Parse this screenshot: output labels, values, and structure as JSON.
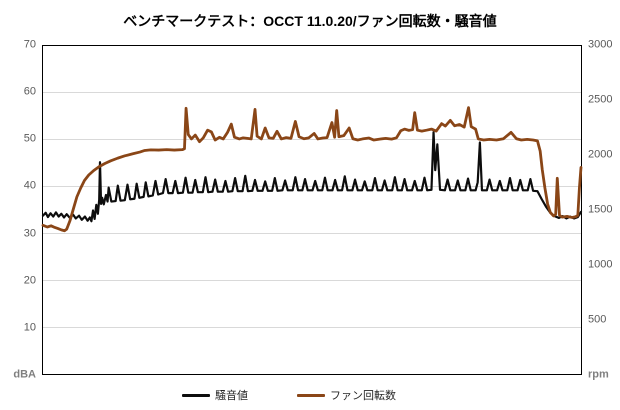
{
  "title": "ベンチマークテスト：OCCT 11.0.20/ファン回転数・騒音値",
  "colors": {
    "noise": "#0d0d0d",
    "fan": "#8a4617",
    "grid": "#d9d9d9",
    "plot_border": "#000000",
    "tick_label": "#595959",
    "unit_label": "#7f7f7f"
  },
  "left_axis": {
    "unit": "dBA",
    "max": 70,
    "min": 0,
    "ticks": [
      70,
      60,
      50,
      40,
      30,
      20,
      10
    ]
  },
  "right_axis": {
    "unit": "rpm",
    "max": 3000,
    "min": 0,
    "ticks": [
      3000,
      2500,
      2000,
      1500,
      1000,
      500
    ]
  },
  "legend": [
    {
      "label": "騒音値"
    },
    {
      "label": "ファン回転数"
    }
  ],
  "chart_data": {
    "type": "line",
    "title": "ベンチマークテスト：OCCT 11.0.20/ファン回転数・騒音値",
    "x_axis": "time (% of benchmark run, unlabeled in chart)",
    "ylim_left": [
      0,
      70
    ],
    "ylim_right": [
      0,
      3000
    ],
    "grid": "horizontal, every 10 dBA",
    "legend_position": "bottom",
    "series": [
      {
        "name": "騒音値",
        "key": "noise-line",
        "axis": "left",
        "unit": "dBA",
        "color": "#0d0d0d",
        "width": 2.2,
        "points": [
          [
            0,
            33.8
          ],
          [
            0.5,
            34.4
          ],
          [
            0.9,
            33.5
          ],
          [
            1.4,
            34.3
          ],
          [
            1.9,
            33.6
          ],
          [
            2.4,
            34.5
          ],
          [
            2.9,
            33.6
          ],
          [
            3.4,
            34.2
          ],
          [
            3.9,
            33.4
          ],
          [
            4.4,
            34.1
          ],
          [
            5,
            33.3
          ],
          [
            5.6,
            34
          ],
          [
            6.1,
            33.2
          ],
          [
            6.7,
            33.8
          ],
          [
            7.2,
            32.9
          ],
          [
            7.8,
            33.6
          ],
          [
            8.3,
            32.7
          ],
          [
            8.7,
            33.4
          ],
          [
            9,
            32.6
          ],
          [
            9.3,
            34.9
          ],
          [
            9.6,
            33.1
          ],
          [
            9.9,
            36.1
          ],
          [
            10.2,
            34.2
          ],
          [
            10.45,
            37.2
          ],
          [
            10.6,
            45.2
          ],
          [
            10.8,
            36.3
          ],
          [
            11,
            37.6
          ],
          [
            11.3,
            36.2
          ],
          [
            11.7,
            38.2
          ],
          [
            12,
            36.8
          ],
          [
            12.2,
            39.8
          ],
          [
            12.7,
            36.8
          ],
          [
            13.5,
            36.9
          ],
          [
            13.9,
            40.2
          ],
          [
            14.4,
            37
          ],
          [
            15.2,
            37.1
          ],
          [
            15.7,
            40.4
          ],
          [
            16.2,
            37.3
          ],
          [
            17,
            37.4
          ],
          [
            17.4,
            40.6
          ],
          [
            17.9,
            37.6
          ],
          [
            18.7,
            37.8
          ],
          [
            19.1,
            40.9
          ],
          [
            19.6,
            37.9
          ],
          [
            20.4,
            38.1
          ],
          [
            20.9,
            41.2
          ],
          [
            21.4,
            38.3
          ],
          [
            22.3,
            38.6
          ],
          [
            22.8,
            41.6
          ],
          [
            23.3,
            38.6
          ],
          [
            24.1,
            38.6
          ],
          [
            24.6,
            41.2
          ],
          [
            25.1,
            38.6
          ],
          [
            26,
            38.7
          ],
          [
            26.5,
            41.9
          ],
          [
            27,
            38.7
          ],
          [
            27.8,
            38.7
          ],
          [
            28.3,
            41.4
          ],
          [
            28.8,
            38.8
          ],
          [
            29.7,
            38.8
          ],
          [
            30.2,
            42
          ],
          [
            30.7,
            38.8
          ],
          [
            31.5,
            38.9
          ],
          [
            32,
            41.5
          ],
          [
            32.5,
            38.9
          ],
          [
            33.4,
            38.9
          ],
          [
            33.9,
            41.2
          ],
          [
            34.4,
            38.9
          ],
          [
            35.2,
            39
          ],
          [
            35.7,
            41.8
          ],
          [
            36.2,
            39
          ],
          [
            37.1,
            39
          ],
          [
            37.6,
            42.3
          ],
          [
            38.1,
            39
          ],
          [
            38.9,
            39.1
          ],
          [
            39.4,
            41.4
          ],
          [
            39.9,
            39.1
          ],
          [
            40.8,
            39.1
          ],
          [
            41.3,
            41.1
          ],
          [
            41.8,
            39.1
          ],
          [
            42.6,
            39.1
          ],
          [
            43.1,
            41.8
          ],
          [
            43.6,
            39.1
          ],
          [
            44.5,
            39.2
          ],
          [
            45,
            41.3
          ],
          [
            45.5,
            39.2
          ],
          [
            46.4,
            39.2
          ],
          [
            46.9,
            42
          ],
          [
            47.4,
            39.2
          ],
          [
            48.2,
            39.2
          ],
          [
            48.7,
            41.6
          ],
          [
            49.2,
            39.2
          ],
          [
            50.1,
            39.2
          ],
          [
            50.6,
            41.2
          ],
          [
            51.1,
            39.2
          ],
          [
            51.9,
            39.2
          ],
          [
            52.4,
            41.9
          ],
          [
            52.9,
            39.2
          ],
          [
            53.8,
            39.2
          ],
          [
            54.3,
            41.4
          ],
          [
            54.8,
            39.2
          ],
          [
            55.6,
            39.2
          ],
          [
            56.1,
            42.2
          ],
          [
            56.6,
            39.2
          ],
          [
            57.5,
            39.2
          ],
          [
            58,
            41.5
          ],
          [
            58.5,
            39.2
          ],
          [
            59.3,
            39.2
          ],
          [
            59.8,
            41.1
          ],
          [
            60.3,
            39.2
          ],
          [
            61.2,
            39.2
          ],
          [
            61.7,
            41.8
          ],
          [
            62.2,
            39.2
          ],
          [
            63,
            39.2
          ],
          [
            63.5,
            41.3
          ],
          [
            64,
            39.2
          ],
          [
            64.9,
            39.2
          ],
          [
            65.4,
            42
          ],
          [
            65.9,
            39.2
          ],
          [
            66.7,
            39.2
          ],
          [
            67.2,
            41.6
          ],
          [
            67.7,
            39.2
          ],
          [
            68.6,
            39.2
          ],
          [
            69.1,
            41.2
          ],
          [
            69.6,
            39.2
          ],
          [
            70.4,
            39.2
          ],
          [
            70.9,
            41.9
          ],
          [
            71.4,
            39.2
          ],
          [
            72.2,
            39.3
          ],
          [
            72.6,
            51.6
          ],
          [
            72.9,
            43.5
          ],
          [
            73.3,
            49
          ],
          [
            73.8,
            39.3
          ],
          [
            74.7,
            39.2
          ],
          [
            75.2,
            41.5
          ],
          [
            75.7,
            39.2
          ],
          [
            76.6,
            39.2
          ],
          [
            77.1,
            41.3
          ],
          [
            77.6,
            39.2
          ],
          [
            78.5,
            39.2
          ],
          [
            79,
            41.7
          ],
          [
            79.5,
            39.2
          ],
          [
            80.4,
            39.2
          ],
          [
            80.8,
            40.9
          ],
          [
            81.2,
            49.4
          ],
          [
            81.6,
            39.2
          ],
          [
            82.5,
            39.2
          ],
          [
            83,
            41.5
          ],
          [
            83.5,
            39.2
          ],
          [
            84.4,
            39.2
          ],
          [
            84.9,
            41.2
          ],
          [
            85.4,
            39.2
          ],
          [
            86.3,
            39.2
          ],
          [
            86.8,
            41.8
          ],
          [
            87.3,
            39.2
          ],
          [
            88.2,
            39.2
          ],
          [
            88.7,
            41.4
          ],
          [
            89.2,
            39.2
          ],
          [
            90.1,
            39.2
          ],
          [
            90.6,
            41.6
          ],
          [
            91.1,
            39.1
          ],
          [
            91.9,
            39
          ],
          [
            92.7,
            37.3
          ],
          [
            93.5,
            35.7
          ],
          [
            94.3,
            34.4
          ],
          [
            95.1,
            33.7
          ],
          [
            95.9,
            33.3
          ],
          [
            96.6,
            33.7
          ],
          [
            97.3,
            33.2
          ],
          [
            98,
            33.6
          ],
          [
            98.7,
            33.2
          ],
          [
            99.4,
            33.5
          ],
          [
            100,
            34.6
          ]
        ]
      },
      {
        "name": "ファン回転数",
        "key": "fan-line",
        "axis": "right",
        "unit": "rpm",
        "color": "#8a4617",
        "width": 2.8,
        "points": [
          [
            0,
            1360
          ],
          [
            0.8,
            1345
          ],
          [
            1.5,
            1355
          ],
          [
            2.2,
            1340
          ],
          [
            2.8,
            1330
          ],
          [
            3.4,
            1318
          ],
          [
            4,
            1310
          ],
          [
            4.4,
            1325
          ],
          [
            5,
            1400
          ],
          [
            5.7,
            1520
          ],
          [
            6.3,
            1620
          ],
          [
            7,
            1700
          ],
          [
            7.7,
            1770
          ],
          [
            8.5,
            1820
          ],
          [
            9.4,
            1860
          ],
          [
            10.4,
            1895
          ],
          [
            11.5,
            1925
          ],
          [
            12.6,
            1950
          ],
          [
            13.9,
            1975
          ],
          [
            15.2,
            1995
          ],
          [
            16.7,
            2015
          ],
          [
            18,
            2030
          ],
          [
            18.9,
            2045
          ],
          [
            20,
            2050
          ],
          [
            21.5,
            2048
          ],
          [
            23,
            2052
          ],
          [
            24.4,
            2048
          ],
          [
            25.9,
            2052
          ],
          [
            26.3,
            2060
          ],
          [
            26.6,
            2430
          ],
          [
            27,
            2190
          ],
          [
            27.6,
            2150
          ],
          [
            28.3,
            2185
          ],
          [
            29.1,
            2125
          ],
          [
            29.8,
            2160
          ],
          [
            30.6,
            2230
          ],
          [
            31.3,
            2215
          ],
          [
            32,
            2140
          ],
          [
            32.8,
            2165
          ],
          [
            33.5,
            2150
          ],
          [
            34.3,
            2210
          ],
          [
            35,
            2285
          ],
          [
            35.6,
            2165
          ],
          [
            36.5,
            2150
          ],
          [
            37.2,
            2160
          ],
          [
            38,
            2155
          ],
          [
            38.7,
            2150
          ],
          [
            39.4,
            2420
          ],
          [
            39.8,
            2175
          ],
          [
            40.6,
            2150
          ],
          [
            41.3,
            2250
          ],
          [
            42,
            2160
          ],
          [
            42.8,
            2155
          ],
          [
            43.5,
            2220
          ],
          [
            44.3,
            2150
          ],
          [
            45.2,
            2162
          ],
          [
            46.1,
            2155
          ],
          [
            46.9,
            2310
          ],
          [
            47.6,
            2170
          ],
          [
            48.5,
            2152
          ],
          [
            49.4,
            2160
          ],
          [
            50.4,
            2200
          ],
          [
            51.1,
            2150
          ],
          [
            52,
            2158
          ],
          [
            52.8,
            2162
          ],
          [
            53.7,
            2300
          ],
          [
            54.2,
            2165
          ],
          [
            54.6,
            2410
          ],
          [
            55,
            2170
          ],
          [
            55.9,
            2180
          ],
          [
            56.9,
            2250
          ],
          [
            57.6,
            2152
          ],
          [
            58.5,
            2140
          ],
          [
            59.4,
            2150
          ],
          [
            60.6,
            2158
          ],
          [
            61.5,
            2140
          ],
          [
            62.6,
            2148
          ],
          [
            63.7,
            2155
          ],
          [
            64.8,
            2148
          ],
          [
            65.7,
            2160
          ],
          [
            66.5,
            2225
          ],
          [
            67.2,
            2240
          ],
          [
            68,
            2228
          ],
          [
            68.7,
            2235
          ],
          [
            69.1,
            2390
          ],
          [
            69.6,
            2230
          ],
          [
            70.4,
            2222
          ],
          [
            71.3,
            2230
          ],
          [
            72.2,
            2240
          ],
          [
            73.1,
            2222
          ],
          [
            74.1,
            2290
          ],
          [
            74.8,
            2268
          ],
          [
            75.7,
            2320
          ],
          [
            76.5,
            2270
          ],
          [
            77.4,
            2282
          ],
          [
            78.3,
            2258
          ],
          [
            79.1,
            2436
          ],
          [
            79.6,
            2262
          ],
          [
            80.4,
            2240
          ],
          [
            80.9,
            2150
          ],
          [
            81.9,
            2140
          ],
          [
            83,
            2146
          ],
          [
            84.3,
            2140
          ],
          [
            85.6,
            2152
          ],
          [
            87,
            2210
          ],
          [
            88,
            2152
          ],
          [
            88.9,
            2140
          ],
          [
            90,
            2146
          ],
          [
            91.1,
            2140
          ],
          [
            91.9,
            2132
          ],
          [
            92.4,
            2040
          ],
          [
            92.8,
            1870
          ],
          [
            93.3,
            1700
          ],
          [
            93.8,
            1555
          ],
          [
            94.3,
            1478
          ],
          [
            94.9,
            1445
          ],
          [
            95.3,
            1462
          ],
          [
            95.6,
            1790
          ],
          [
            96,
            1452
          ],
          [
            96.5,
            1435
          ],
          [
            97.4,
            1442
          ],
          [
            98.3,
            1432
          ],
          [
            99,
            1438
          ],
          [
            99.4,
            1450
          ],
          [
            99.7,
            1700
          ],
          [
            100,
            1890
          ]
        ]
      }
    ]
  }
}
